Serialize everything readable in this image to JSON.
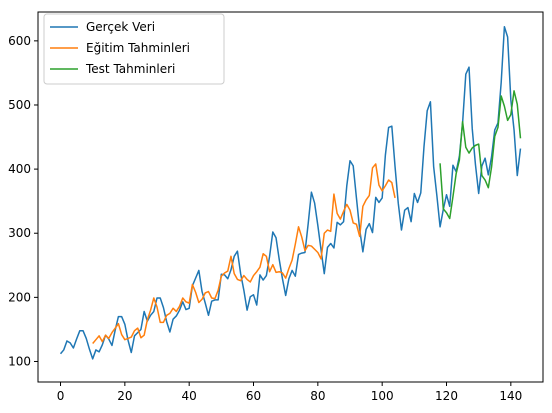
{
  "chart_data": {
    "type": "line",
    "xlim": [
      -7,
      150
    ],
    "ylim": [
      68,
      645
    ],
    "xticks": [
      0,
      20,
      40,
      60,
      80,
      100,
      120,
      140
    ],
    "yticks": [
      100,
      200,
      300,
      400,
      500,
      600
    ],
    "grid": false,
    "legend_position": "top-left",
    "series": [
      {
        "name": "Gerçek Veri",
        "color": "#1f77b4",
        "x_start": 0,
        "values": [
          112,
          118,
          132,
          129,
          121,
          135,
          148,
          148,
          136,
          119,
          104,
          118,
          115,
          126,
          141,
          135,
          125,
          149,
          170,
          170,
          158,
          133,
          114,
          140,
          145,
          150,
          178,
          163,
          172,
          178,
          199,
          199,
          184,
          162,
          146,
          166,
          171,
          180,
          193,
          181,
          183,
          218,
          230,
          242,
          209,
          191,
          172,
          194,
          196,
          196,
          236,
          235,
          229,
          243,
          264,
          272,
          237,
          211,
          180,
          201,
          204,
          188,
          235,
          227,
          234,
          264,
          302,
          293,
          259,
          229,
          203,
          229,
          242,
          233,
          267,
          269,
          270,
          315,
          364,
          347,
          312,
          274,
          237,
          278,
          284,
          277,
          317,
          313,
          318,
          374,
          413,
          405,
          355,
          306,
          271,
          306,
          315,
          301,
          356,
          348,
          355,
          422,
          465,
          467,
          404,
          347,
          305,
          336,
          340,
          318,
          362,
          348,
          363,
          435,
          491,
          505,
          404,
          359,
          310,
          337,
          360,
          342,
          406,
          396,
          420,
          472,
          548,
          559,
          463,
          407,
          362,
          405,
          417,
          391,
          419,
          461,
          472,
          535,
          622,
          606,
          508,
          461,
          390,
          432
        ]
      },
      {
        "name": "Eğitim Tahminleri",
        "color": "#ff7f0e",
        "x_start": 10,
        "values": [
          128,
          134,
          140,
          131,
          141,
          136,
          145,
          152,
          159,
          142,
          134,
          136,
          138,
          148,
          152,
          137,
          141,
          165,
          180,
          199,
          185,
          161,
          161,
          172,
          175,
          183,
          178,
          186,
          199,
          193,
          191,
          220,
          208,
          192,
          197,
          207,
          209,
          199,
          198,
          211,
          233,
          238,
          241,
          264,
          237,
          228,
          226,
          234,
          228,
          224,
          234,
          240,
          247,
          268,
          264,
          240,
          251,
          239,
          240,
          238,
          230,
          245,
          258,
          283,
          310,
          294,
          273,
          281,
          280,
          275,
          270,
          260,
          300,
          305,
          303,
          361,
          331,
          322,
          334,
          345,
          336,
          316,
          314,
          295,
          342,
          352,
          359,
          402,
          408,
          375,
          366,
          374,
          383,
          379,
          355
        ]
      },
      {
        "name": "Test Tahminleri",
        "color": "#2ca02c",
        "x_start": 118,
        "values": [
          409,
          338,
          332,
          323,
          357,
          393,
          414,
          474,
          434,
          425,
          433,
          437,
          439,
          390,
          383,
          371,
          403,
          451,
          465,
          514,
          498,
          476,
          485,
          522,
          501,
          448
        ]
      }
    ]
  }
}
